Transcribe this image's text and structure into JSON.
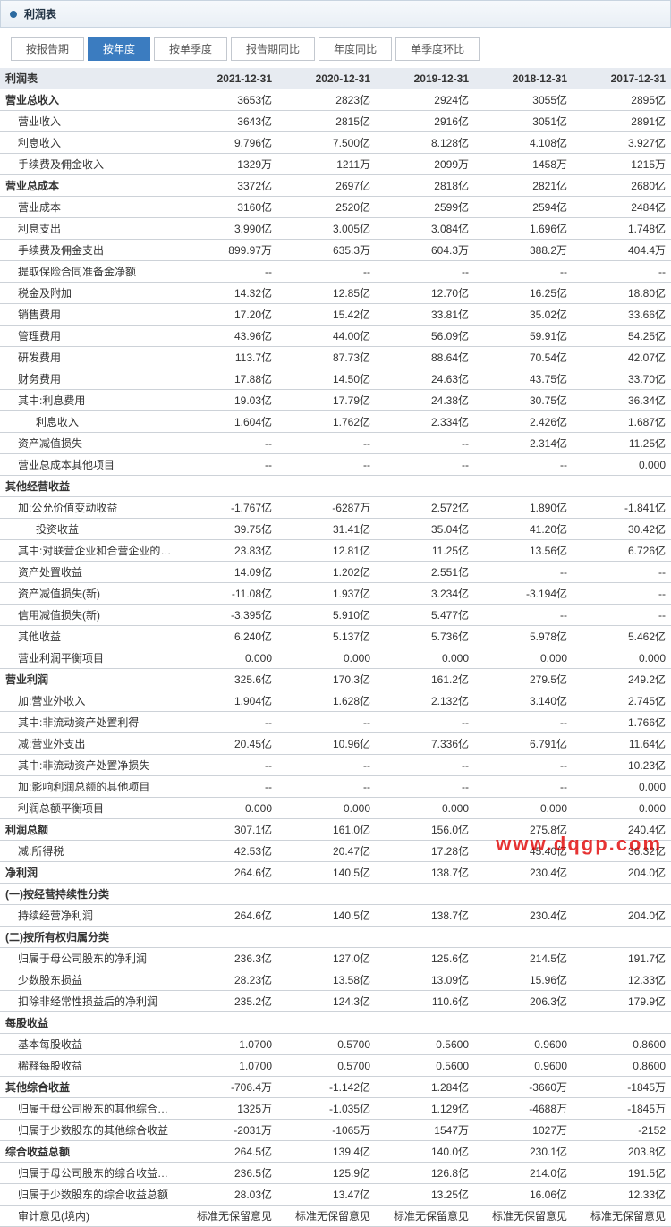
{
  "panel": {
    "title": "利润表"
  },
  "tabs": [
    {
      "label": "按报告期",
      "active": false
    },
    {
      "label": "按年度",
      "active": true
    },
    {
      "label": "按单季度",
      "active": false
    },
    {
      "label": "报告期同比",
      "active": false
    },
    {
      "label": "年度同比",
      "active": false
    },
    {
      "label": "单季度环比",
      "active": false
    }
  ],
  "columns": [
    "利润表",
    "2021-12-31",
    "2020-12-31",
    "2019-12-31",
    "2018-12-31",
    "2017-12-31"
  ],
  "rows": [
    {
      "label": "营业总收入",
      "level": 0,
      "section": true,
      "v": [
        "3653亿",
        "2823亿",
        "2924亿",
        "3055亿",
        "2895亿"
      ]
    },
    {
      "label": "营业收入",
      "level": 1,
      "v": [
        "3643亿",
        "2815亿",
        "2916亿",
        "3051亿",
        "2891亿"
      ]
    },
    {
      "label": "利息收入",
      "level": 1,
      "v": [
        "9.796亿",
        "7.500亿",
        "8.128亿",
        "4.108亿",
        "3.927亿"
      ]
    },
    {
      "label": "手续费及佣金收入",
      "level": 1,
      "v": [
        "1329万",
        "1211万",
        "2099万",
        "1458万",
        "1215万"
      ]
    },
    {
      "label": "营业总成本",
      "level": 0,
      "section": true,
      "v": [
        "3372亿",
        "2697亿",
        "2818亿",
        "2821亿",
        "2680亿"
      ]
    },
    {
      "label": "营业成本",
      "level": 1,
      "v": [
        "3160亿",
        "2520亿",
        "2599亿",
        "2594亿",
        "2484亿"
      ]
    },
    {
      "label": "利息支出",
      "level": 1,
      "v": [
        "3.990亿",
        "3.005亿",
        "3.084亿",
        "1.696亿",
        "1.748亿"
      ]
    },
    {
      "label": "手续费及佣金支出",
      "level": 1,
      "v": [
        "899.97万",
        "635.3万",
        "604.3万",
        "388.2万",
        "404.4万"
      ]
    },
    {
      "label": "提取保险合同准备金净额",
      "level": 1,
      "v": [
        "--",
        "--",
        "--",
        "--",
        "--"
      ]
    },
    {
      "label": "税金及附加",
      "level": 1,
      "v": [
        "14.32亿",
        "12.85亿",
        "12.70亿",
        "16.25亿",
        "18.80亿"
      ]
    },
    {
      "label": "销售费用",
      "level": 1,
      "v": [
        "17.20亿",
        "15.42亿",
        "33.81亿",
        "35.02亿",
        "33.66亿"
      ]
    },
    {
      "label": "管理费用",
      "level": 1,
      "v": [
        "43.96亿",
        "44.00亿",
        "56.09亿",
        "59.91亿",
        "54.25亿"
      ]
    },
    {
      "label": "研发费用",
      "level": 1,
      "v": [
        "113.7亿",
        "87.73亿",
        "88.64亿",
        "70.54亿",
        "42.07亿"
      ]
    },
    {
      "label": "财务费用",
      "level": 1,
      "v": [
        "17.88亿",
        "14.50亿",
        "24.63亿",
        "43.75亿",
        "33.70亿"
      ]
    },
    {
      "label": "其中:利息费用",
      "level": 1,
      "v": [
        "19.03亿",
        "17.79亿",
        "24.38亿",
        "30.75亿",
        "36.34亿"
      ]
    },
    {
      "label": "利息收入",
      "level": 2,
      "v": [
        "1.604亿",
        "1.762亿",
        "2.334亿",
        "2.426亿",
        "1.687亿"
      ]
    },
    {
      "label": "资产减值损失",
      "level": 1,
      "v": [
        "--",
        "--",
        "--",
        "2.314亿",
        "11.25亿"
      ]
    },
    {
      "label": "营业总成本其他项目",
      "level": 1,
      "v": [
        "--",
        "--",
        "--",
        "--",
        "0.000"
      ]
    },
    {
      "label": "其他经营收益",
      "level": 0,
      "section": true,
      "v": [
        "",
        "",
        "",
        "",
        ""
      ]
    },
    {
      "label": "加:公允价值变动收益",
      "level": 1,
      "v": [
        "-1.767亿",
        "-6287万",
        "2.572亿",
        "1.890亿",
        "-1.841亿"
      ]
    },
    {
      "label": "投资收益",
      "level": 2,
      "v": [
        "39.75亿",
        "31.41亿",
        "35.04亿",
        "41.20亿",
        "30.42亿"
      ]
    },
    {
      "label": "其中:对联营企业和合营企业的投资收益",
      "level": 1,
      "v": [
        "23.83亿",
        "12.81亿",
        "11.25亿",
        "13.56亿",
        "6.726亿"
      ]
    },
    {
      "label": "资产处置收益",
      "level": 1,
      "v": [
        "14.09亿",
        "1.202亿",
        "2.551亿",
        "--",
        "--"
      ]
    },
    {
      "label": "资产减值损失(新)",
      "level": 1,
      "v": [
        "-11.08亿",
        "1.937亿",
        "3.234亿",
        "-3.194亿",
        "--"
      ]
    },
    {
      "label": "信用减值损失(新)",
      "level": 1,
      "v": [
        "-3.395亿",
        "5.910亿",
        "5.477亿",
        "--",
        "--"
      ]
    },
    {
      "label": "其他收益",
      "level": 1,
      "v": [
        "6.240亿",
        "5.137亿",
        "5.736亿",
        "5.978亿",
        "5.462亿"
      ]
    },
    {
      "label": "营业利润平衡项目",
      "level": 1,
      "v": [
        "0.000",
        "0.000",
        "0.000",
        "0.000",
        "0.000"
      ]
    },
    {
      "label": "营业利润",
      "level": 0,
      "section": true,
      "v": [
        "325.6亿",
        "170.3亿",
        "161.2亿",
        "279.5亿",
        "249.2亿"
      ]
    },
    {
      "label": "加:营业外收入",
      "level": 1,
      "v": [
        "1.904亿",
        "1.628亿",
        "2.132亿",
        "3.140亿",
        "2.745亿"
      ]
    },
    {
      "label": "其中:非流动资产处置利得",
      "level": 1,
      "v": [
        "--",
        "--",
        "--",
        "--",
        "1.766亿"
      ]
    },
    {
      "label": "减:营业外支出",
      "level": 1,
      "v": [
        "20.45亿",
        "10.96亿",
        "7.336亿",
        "6.791亿",
        "11.64亿"
      ]
    },
    {
      "label": "其中:非流动资产处置净损失",
      "level": 1,
      "v": [
        "--",
        "--",
        "--",
        "--",
        "10.23亿"
      ]
    },
    {
      "label": "加:影响利润总额的其他项目",
      "level": 1,
      "v": [
        "--",
        "--",
        "--",
        "--",
        "0.000"
      ]
    },
    {
      "label": "利润总额平衡项目",
      "level": 1,
      "v": [
        "0.000",
        "0.000",
        "0.000",
        "0.000",
        "0.000"
      ]
    },
    {
      "label": "利润总额",
      "level": 0,
      "section": true,
      "v": [
        "307.1亿",
        "161.0亿",
        "156.0亿",
        "275.8亿",
        "240.4亿"
      ]
    },
    {
      "label": "减:所得税",
      "level": 1,
      "v": [
        "42.53亿",
        "20.47亿",
        "17.28亿",
        "45.40亿",
        "36.32亿"
      ]
    },
    {
      "label": "净利润",
      "level": 0,
      "section": true,
      "v": [
        "264.6亿",
        "140.5亿",
        "138.7亿",
        "230.4亿",
        "204.0亿"
      ]
    },
    {
      "label": "(一)按经营持续性分类",
      "level": 0,
      "section": true,
      "v": [
        "",
        "",
        "",
        "",
        ""
      ]
    },
    {
      "label": "持续经营净利润",
      "level": 1,
      "v": [
        "264.6亿",
        "140.5亿",
        "138.7亿",
        "230.4亿",
        "204.0亿"
      ]
    },
    {
      "label": "(二)按所有权归属分类",
      "level": 0,
      "section": true,
      "v": [
        "",
        "",
        "",
        "",
        ""
      ]
    },
    {
      "label": "归属于母公司股东的净利润",
      "level": 1,
      "v": [
        "236.3亿",
        "127.0亿",
        "125.6亿",
        "214.5亿",
        "191.7亿"
      ]
    },
    {
      "label": "少数股东损益",
      "level": 1,
      "v": [
        "28.23亿",
        "13.58亿",
        "13.09亿",
        "15.96亿",
        "12.33亿"
      ]
    },
    {
      "label": "扣除非经常性损益后的净利润",
      "level": 1,
      "v": [
        "235.2亿",
        "124.3亿",
        "110.6亿",
        "206.3亿",
        "179.9亿"
      ]
    },
    {
      "label": "每股收益",
      "level": 0,
      "section": true,
      "v": [
        "",
        "",
        "",
        "",
        ""
      ]
    },
    {
      "label": "基本每股收益",
      "level": 1,
      "v": [
        "1.0700",
        "0.5700",
        "0.5600",
        "0.9600",
        "0.8600"
      ]
    },
    {
      "label": "稀释每股收益",
      "level": 1,
      "v": [
        "1.0700",
        "0.5700",
        "0.5600",
        "0.9600",
        "0.8600"
      ]
    },
    {
      "label": "其他综合收益",
      "level": 0,
      "section": true,
      "v": [
        "-706.4万",
        "-1.142亿",
        "1.284亿",
        "-3660万",
        "-1845万"
      ]
    },
    {
      "label": "归属于母公司股东的其他综合收益",
      "level": 1,
      "v": [
        "1325万",
        "-1.035亿",
        "1.129亿",
        "-4688万",
        "-1845万"
      ]
    },
    {
      "label": "归属于少数股东的其他综合收益",
      "level": 1,
      "v": [
        "-2031万",
        "-1065万",
        "1547万",
        "1027万",
        "-2152"
      ]
    },
    {
      "label": "综合收益总额",
      "level": 0,
      "section": true,
      "v": [
        "264.5亿",
        "139.4亿",
        "140.0亿",
        "230.1亿",
        "203.8亿"
      ]
    },
    {
      "label": "归属于母公司股东的综合收益总额",
      "level": 1,
      "v": [
        "236.5亿",
        "125.9亿",
        "126.8亿",
        "214.0亿",
        "191.5亿"
      ]
    },
    {
      "label": "归属于少数股东的综合收益总额",
      "level": 1,
      "v": [
        "28.03亿",
        "13.47亿",
        "13.25亿",
        "16.06亿",
        "12.33亿"
      ]
    },
    {
      "label": "审计意见(境内)",
      "level": 1,
      "v": [
        "标准无保留意见",
        "标准无保留意见",
        "标准无保留意见",
        "标准无保留意见",
        "标准无保留意见"
      ]
    }
  ],
  "watermark": "www.dqgp.com"
}
